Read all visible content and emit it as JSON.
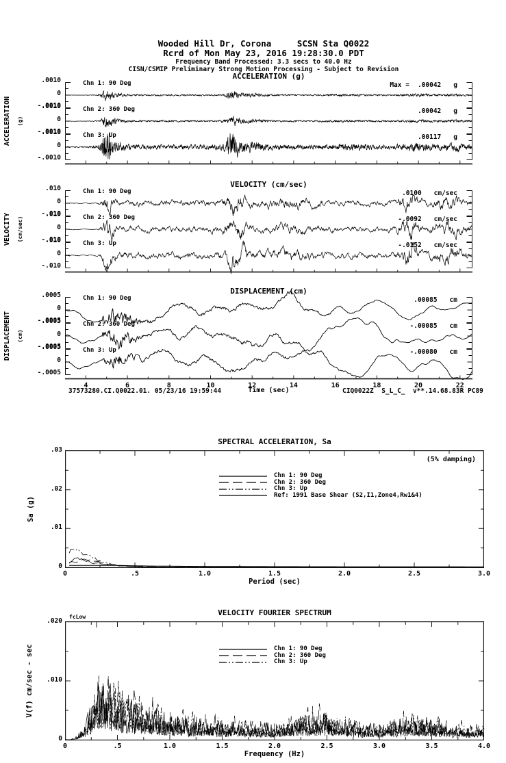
{
  "header": {
    "line1": "Wooded Hill Dr, Corona     SCSN Sta Q0022",
    "line2": "Rcrd of Mon May 23, 2016 19:28:30.0 PDT",
    "line3": "Frequency Band Processed: 3.3 secs to 40.0 Hz",
    "line4": "CISN/CSMIP Preliminary Strong Motion Processing - Subject to Revision"
  },
  "footer": {
    "left": "37573280.CI.Q0022.01. 05/23/16 19:59:44",
    "center": "Time (sec)",
    "right": "CIQ0022Z  S_L_C_  v**.14.68.83R PC89"
  },
  "chart_data": [
    {
      "type": "line",
      "name": "acceleration_time_series",
      "title": "ACCELERATION (g)",
      "ylabel_main": "ACCELERATION",
      "ylabel_unit": "(g)",
      "xlabel": "Time (sec)",
      "x_range_sec": [
        3.0,
        22.6
      ],
      "x_ticks": [
        "4",
        "6",
        "8",
        "10",
        "12",
        "14",
        "16",
        "18",
        "20",
        "22"
      ],
      "x_tick_values": [
        4,
        6,
        8,
        10,
        12,
        14,
        16,
        18,
        20,
        22
      ],
      "channels": [
        {
          "label": "Chn 1: 90 Deg",
          "yticks": [
            ".0010",
            "0",
            "-.0010"
          ],
          "max_prefix": "Max =",
          "max_value": ".00042",
          "max_units": "g",
          "peak_g": 0.00042
        },
        {
          "label": "Chn 2: 360 Deg",
          "yticks": [
            ".0010",
            "0",
            "-.0010"
          ],
          "max_prefix": "",
          "max_value": ".00042",
          "max_units": "g",
          "peak_g": 0.00042
        },
        {
          "label": "Chn 3: Up",
          "yticks": [
            ".0010",
            "0",
            "-.0010"
          ],
          "max_prefix": "",
          "max_value": ".00117",
          "max_units": "g",
          "peak_g": 0.00117
        }
      ]
    },
    {
      "type": "line",
      "name": "velocity_time_series",
      "title": "VELOCITY (cm/sec)",
      "ylabel_main": "VELOCITY",
      "ylabel_unit": "(cm/sec)",
      "xlabel": "Time (sec)",
      "x_range_sec": [
        3.0,
        22.6
      ],
      "x_ticks": [
        "4",
        "6",
        "8",
        "10",
        "12",
        "14",
        "16",
        "18",
        "20",
        "22"
      ],
      "x_tick_values": [
        4,
        6,
        8,
        10,
        12,
        14,
        16,
        18,
        20,
        22
      ],
      "channels": [
        {
          "label": "Chn 1: 90 Deg",
          "yticks": [
            ".010",
            "0",
            "-.010"
          ],
          "max_prefix": "",
          "max_value": ".0100",
          "max_units": "cm/sec",
          "peak_cm_s": 0.01
        },
        {
          "label": "Chn 2: 360 Deg",
          "yticks": [
            ".010",
            "0",
            "-.010"
          ],
          "max_prefix": "",
          "max_value": "-.0092",
          "max_units": "cm/sec",
          "peak_cm_s": -0.0092
        },
        {
          "label": "Chn 3: Up",
          "yticks": [
            ".010",
            "0",
            "-.010"
          ],
          "max_prefix": "",
          "max_value": "-.0152",
          "max_units": "cm/sec",
          "peak_cm_s": -0.0152
        }
      ]
    },
    {
      "type": "line",
      "name": "displacement_time_series",
      "title": "DISPLACEMENT (cm)",
      "ylabel_main": "DISPLACEMENT",
      "ylabel_unit": "(cm)",
      "xlabel": "Time (sec)",
      "x_range_sec": [
        3.0,
        22.6
      ],
      "x_ticks": [
        "4",
        "6",
        "8",
        "10",
        "12",
        "14",
        "16",
        "18",
        "20",
        "22"
      ],
      "x_tick_values": [
        4,
        6,
        8,
        10,
        12,
        14,
        16,
        18,
        20,
        22
      ],
      "channels": [
        {
          "label": "Chn 1: 90 Deg",
          "yticks": [
            ".0005",
            "0",
            "-.0005"
          ],
          "max_prefix": "",
          "max_value": ".00085",
          "max_units": "cm",
          "peak_cm": 0.00085
        },
        {
          "label": "Chn 2: 360 Deg",
          "yticks": [
            ".0005",
            "0",
            "-.0005"
          ],
          "max_prefix": "",
          "max_value": "-.00085",
          "max_units": "cm",
          "peak_cm": -0.00085
        },
        {
          "label": "Chn 3: Up",
          "yticks": [
            ".0005",
            "0",
            "-.0005"
          ],
          "max_prefix": "",
          "max_value": "-.00080",
          "max_units": "cm",
          "peak_cm": -0.0008
        }
      ]
    },
    {
      "type": "line",
      "name": "spectral_acceleration",
      "title": "SPECTRAL ACCELERATION, Sa",
      "annotation": "(5% damping)",
      "xlabel": "Period (sec)",
      "ylabel": "Sa (g)",
      "xlim": [
        0,
        3.0
      ],
      "ylim": [
        0,
        0.03
      ],
      "x_ticks": [
        "0",
        ".5",
        "1.0",
        "1.5",
        "2.0",
        "2.5",
        "3.0"
      ],
      "x_tick_values": [
        0,
        0.5,
        1.0,
        1.5,
        2.0,
        2.5,
        3.0
      ],
      "y_ticks": [
        ".03",
        ".02",
        ".01",
        "0"
      ],
      "y_tick_values": [
        0.03,
        0.02,
        0.01,
        0
      ],
      "legend": [
        {
          "label": "Chn 1: 90 Deg",
          "style": "solid"
        },
        {
          "label": "Chn 2: 360 Deg",
          "style": "long-dash"
        },
        {
          "label": "Chn 3: Up",
          "style": "dash-dot"
        },
        {
          "label": "Ref: 1991 Base Shear (S2,I1,Zone4,Rw1&4)",
          "style": "solid"
        }
      ],
      "series": [
        {
          "name": "Chn 1: 90 Deg",
          "peak_sa_g": 0.002,
          "peak_period_sec": 0.1
        },
        {
          "name": "Chn 2: 360 Deg",
          "peak_sa_g": 0.0017,
          "peak_period_sec": 0.12
        },
        {
          "name": "Chn 3: Up",
          "peak_sa_g": 0.0045,
          "peak_period_sec": 0.08
        },
        {
          "name": "Ref: 1991 Base Shear (S2,I1,Zone4,Rw1&4)",
          "approx_sa_g": 0.0005
        }
      ]
    },
    {
      "type": "line",
      "name": "velocity_fourier_spectrum",
      "title": "VELOCITY FOURIER SPECTRUM",
      "annotation": "fcLow",
      "xlabel": "Frequency (Hz)",
      "ylabel": "V(f)  cm/sec - sec",
      "xlim": [
        0,
        4.0
      ],
      "ylim": [
        0,
        0.02
      ],
      "x_ticks": [
        "0",
        ".5",
        "1.0",
        "1.5",
        "2.0",
        "2.5",
        "3.0",
        "3.5",
        "4.0"
      ],
      "x_tick_values": [
        0,
        0.5,
        1.0,
        1.5,
        2.0,
        2.5,
        3.0,
        3.5,
        4.0
      ],
      "y_ticks": [
        ".020",
        ".010",
        "0"
      ],
      "y_tick_values": [
        0.02,
        0.01,
        0
      ],
      "legend": [
        {
          "label": "Chn 1: 90 Deg",
          "style": "solid"
        },
        {
          "label": "Chn 2: 360 Deg",
          "style": "long-dash"
        },
        {
          "label": "Chn 3: Up",
          "style": "dash-dot"
        }
      ],
      "series": [
        {
          "name": "Chn 1: 90 Deg",
          "peak_V_cm": 0.01,
          "peak_Hz": 0.5
        },
        {
          "name": "Chn 2: 360 Deg",
          "peak_V_cm": 0.013,
          "peak_Hz": 0.35
        },
        {
          "name": "Chn 3: Up",
          "peak_V_cm": 0.011,
          "peak_Hz": 0.6
        }
      ]
    }
  ]
}
